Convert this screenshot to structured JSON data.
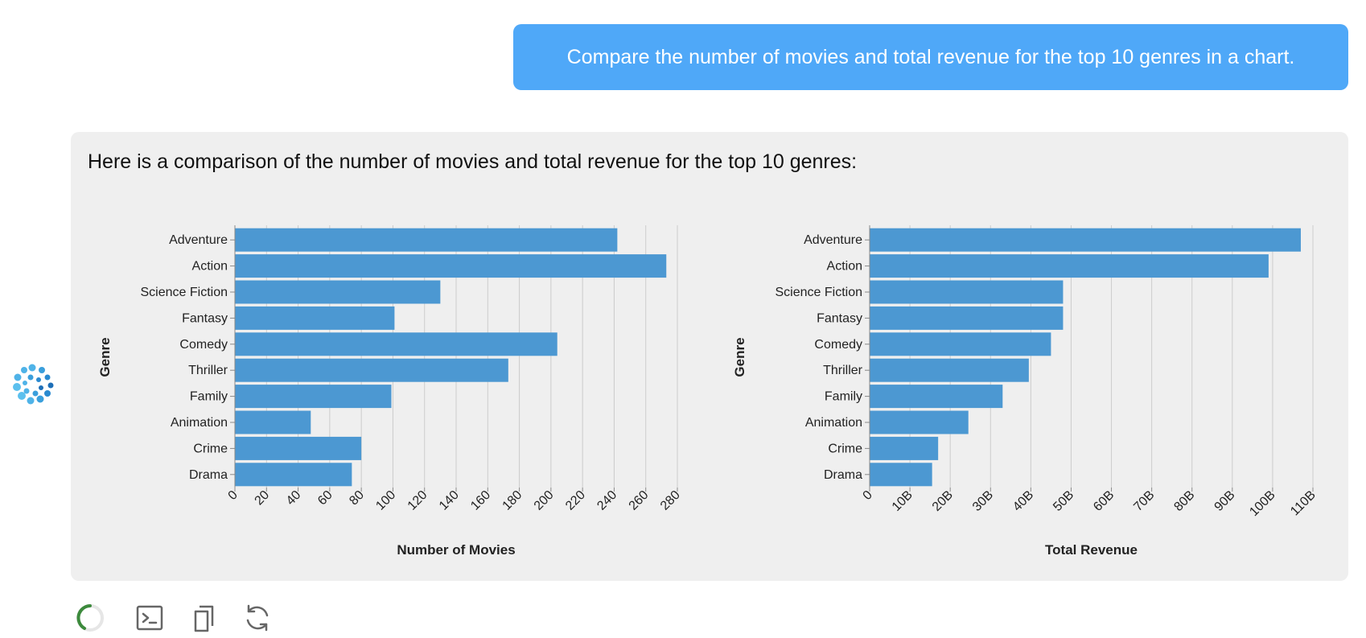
{
  "user_message": "Compare the number of movies and total revenue for the top 10 genres in a chart.",
  "assistant_message": "Here is a comparison of the number of movies and total revenue for the top 10 genres:",
  "accent_color": "#4fa8f8",
  "bar_color": "#4c98d2",
  "chart_data": [
    {
      "type": "bar",
      "orientation": "horizontal",
      "categories": [
        "Adventure",
        "Action",
        "Science Fiction",
        "Fantasy",
        "Comedy",
        "Thriller",
        "Family",
        "Animation",
        "Crime",
        "Drama"
      ],
      "values": [
        242,
        273,
        130,
        101,
        204,
        173,
        99,
        48,
        80,
        74
      ],
      "xlabel": "Number of Movies",
      "ylabel": "Genre",
      "xlim": [
        0,
        280
      ],
      "xticks": [
        "0",
        "20",
        "40",
        "60",
        "80",
        "100",
        "120",
        "140",
        "160",
        "180",
        "200",
        "220",
        "240",
        "260",
        "280"
      ],
      "grid": true
    },
    {
      "type": "bar",
      "orientation": "horizontal",
      "categories": [
        "Adventure",
        "Action",
        "Science Fiction",
        "Fantasy",
        "Comedy",
        "Thriller",
        "Family",
        "Animation",
        "Crime",
        "Drama"
      ],
      "values": [
        107,
        99,
        48,
        48,
        45,
        39.5,
        33,
        24.5,
        17,
        15.5
      ],
      "unit": "B",
      "xlabel": "Total Revenue",
      "ylabel": "Genre",
      "xlim": [
        0,
        110
      ],
      "xticks": [
        "0",
        "10B",
        "20B",
        "30B",
        "40B",
        "50B",
        "60B",
        "70B",
        "80B",
        "90B",
        "100B",
        "110B"
      ],
      "grid": true
    }
  ],
  "actions": [
    {
      "icon": "loading-spinner-icon"
    },
    {
      "icon": "terminal-icon"
    },
    {
      "icon": "copy-icon"
    },
    {
      "icon": "refresh-icon"
    }
  ]
}
